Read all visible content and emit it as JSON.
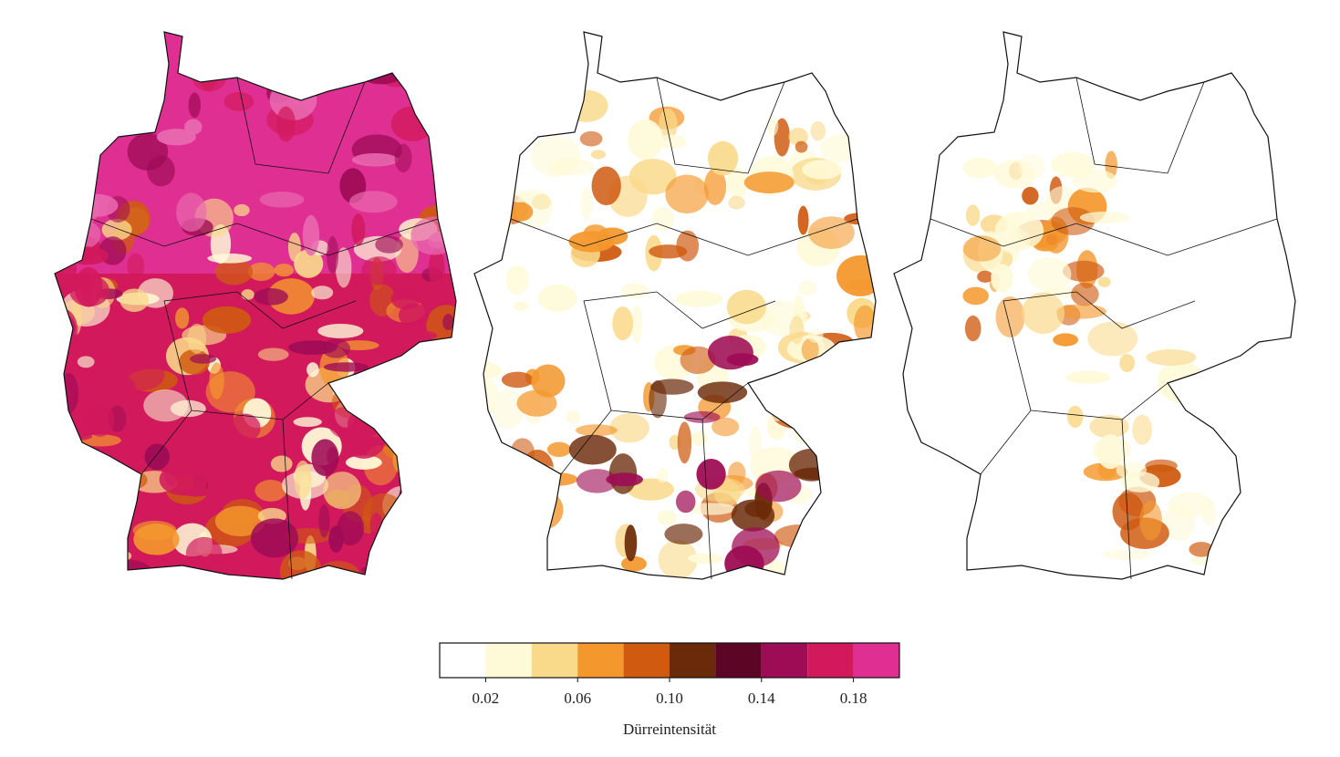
{
  "colorbar": {
    "label": "Dürreintensität",
    "bins": [
      0,
      0.02,
      0.04,
      0.06,
      0.08,
      0.1,
      0.12,
      0.14,
      0.16,
      0.18,
      0.2
    ],
    "colors": [
      "#ffffff",
      "#fefad8",
      "#f9d98a",
      "#f4982e",
      "#cf5a10",
      "#6b2a0a",
      "#5c0525",
      "#9e0c55",
      "#d1195c",
      "#e02f92"
    ],
    "ticks": [
      0.02,
      0.06,
      {
        "value": 0.1,
        "label": "0.10"
      },
      0.14,
      0.18
    ]
  }
}
